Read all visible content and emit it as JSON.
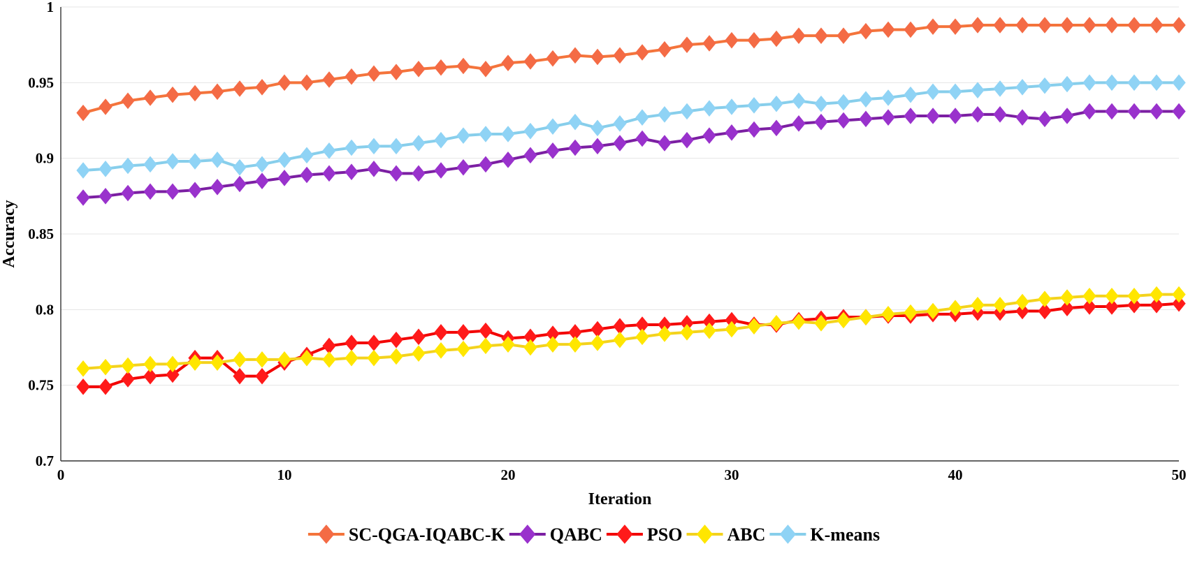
{
  "chart_data": {
    "type": "line",
    "title": "",
    "xlabel": "Iteration",
    "ylabel": "Accuracy",
    "xlim": [
      0,
      50
    ],
    "ylim": [
      0.7,
      1
    ],
    "x_ticks": [
      "0",
      "10",
      "20",
      "30",
      "40",
      "50"
    ],
    "y_ticks": [
      "0.7",
      "0.75",
      "0.8",
      "0.85",
      "0.9",
      "0.95",
      "1"
    ],
    "grid": "horizontal",
    "legend_position": "bottom",
    "x": [
      1,
      2,
      3,
      4,
      5,
      6,
      7,
      8,
      9,
      10,
      11,
      12,
      13,
      14,
      15,
      16,
      17,
      18,
      19,
      20,
      21,
      22,
      23,
      24,
      25,
      26,
      27,
      28,
      29,
      30,
      31,
      32,
      33,
      34,
      35,
      36,
      37,
      38,
      39,
      40,
      41,
      42,
      43,
      44,
      45,
      46,
      47,
      48,
      49,
      50
    ],
    "series": [
      {
        "name": "SC-QGA-IQABC-K",
        "color": "#f4743b",
        "marker_color": "#f46b45",
        "values": [
          0.93,
          0.934,
          0.938,
          0.94,
          0.942,
          0.943,
          0.944,
          0.946,
          0.947,
          0.95,
          0.95,
          0.952,
          0.954,
          0.956,
          0.957,
          0.959,
          0.96,
          0.961,
          0.959,
          0.963,
          0.964,
          0.966,
          0.968,
          0.967,
          0.968,
          0.97,
          0.972,
          0.975,
          0.976,
          0.978,
          0.978,
          0.979,
          0.981,
          0.981,
          0.981,
          0.984,
          0.985,
          0.985,
          0.987,
          0.987,
          0.988,
          0.988,
          0.988,
          0.988,
          0.988,
          0.988,
          0.988,
          0.988,
          0.988,
          0.988
        ]
      },
      {
        "name": "QABC",
        "color": "#7b1fa2",
        "marker_color": "#9932cc",
        "values": [
          0.874,
          0.875,
          0.877,
          0.878,
          0.878,
          0.879,
          0.881,
          0.883,
          0.885,
          0.887,
          0.889,
          0.89,
          0.891,
          0.893,
          0.89,
          0.89,
          0.892,
          0.894,
          0.896,
          0.899,
          0.902,
          0.905,
          0.907,
          0.908,
          0.91,
          0.913,
          0.91,
          0.912,
          0.915,
          0.917,
          0.919,
          0.92,
          0.923,
          0.924,
          0.925,
          0.926,
          0.927,
          0.928,
          0.928,
          0.928,
          0.929,
          0.929,
          0.927,
          0.926,
          0.928,
          0.931,
          0.931,
          0.931,
          0.931,
          0.931
        ]
      },
      {
        "name": "PSO",
        "color": "#f20000",
        "marker_color": "#ff1a1a",
        "values": [
          0.749,
          0.749,
          0.754,
          0.756,
          0.757,
          0.768,
          0.768,
          0.756,
          0.756,
          0.765,
          0.77,
          0.776,
          0.778,
          0.778,
          0.78,
          0.782,
          0.785,
          0.785,
          0.786,
          0.781,
          0.782,
          0.784,
          0.785,
          0.787,
          0.789,
          0.79,
          0.79,
          0.791,
          0.792,
          0.793,
          0.79,
          0.79,
          0.793,
          0.794,
          0.795,
          0.795,
          0.796,
          0.796,
          0.797,
          0.797,
          0.798,
          0.798,
          0.799,
          0.799,
          0.801,
          0.802,
          0.802,
          0.803,
          0.803,
          0.804
        ]
      },
      {
        "name": "ABC",
        "color": "#f3d21e",
        "marker_color": "#ffe600",
        "values": [
          0.761,
          0.762,
          0.763,
          0.764,
          0.764,
          0.765,
          0.765,
          0.767,
          0.767,
          0.767,
          0.768,
          0.767,
          0.768,
          0.768,
          0.769,
          0.771,
          0.773,
          0.774,
          0.776,
          0.777,
          0.775,
          0.777,
          0.777,
          0.778,
          0.78,
          0.782,
          0.784,
          0.785,
          0.786,
          0.787,
          0.789,
          0.791,
          0.792,
          0.791,
          0.793,
          0.795,
          0.797,
          0.798,
          0.799,
          0.801,
          0.803,
          0.803,
          0.805,
          0.807,
          0.808,
          0.809,
          0.809,
          0.809,
          0.81,
          0.81
        ]
      },
      {
        "name": "K-means",
        "color": "#87ceeb",
        "marker_color": "#8fd3f5",
        "values": [
          0.892,
          0.893,
          0.895,
          0.896,
          0.898,
          0.898,
          0.899,
          0.894,
          0.896,
          0.899,
          0.902,
          0.905,
          0.907,
          0.908,
          0.908,
          0.91,
          0.912,
          0.915,
          0.916,
          0.916,
          0.918,
          0.921,
          0.924,
          0.92,
          0.923,
          0.927,
          0.929,
          0.931,
          0.933,
          0.934,
          0.935,
          0.936,
          0.938,
          0.936,
          0.937,
          0.939,
          0.94,
          0.942,
          0.944,
          0.944,
          0.945,
          0.946,
          0.947,
          0.948,
          0.949,
          0.95,
          0.95,
          0.95,
          0.95,
          0.95
        ]
      }
    ]
  }
}
